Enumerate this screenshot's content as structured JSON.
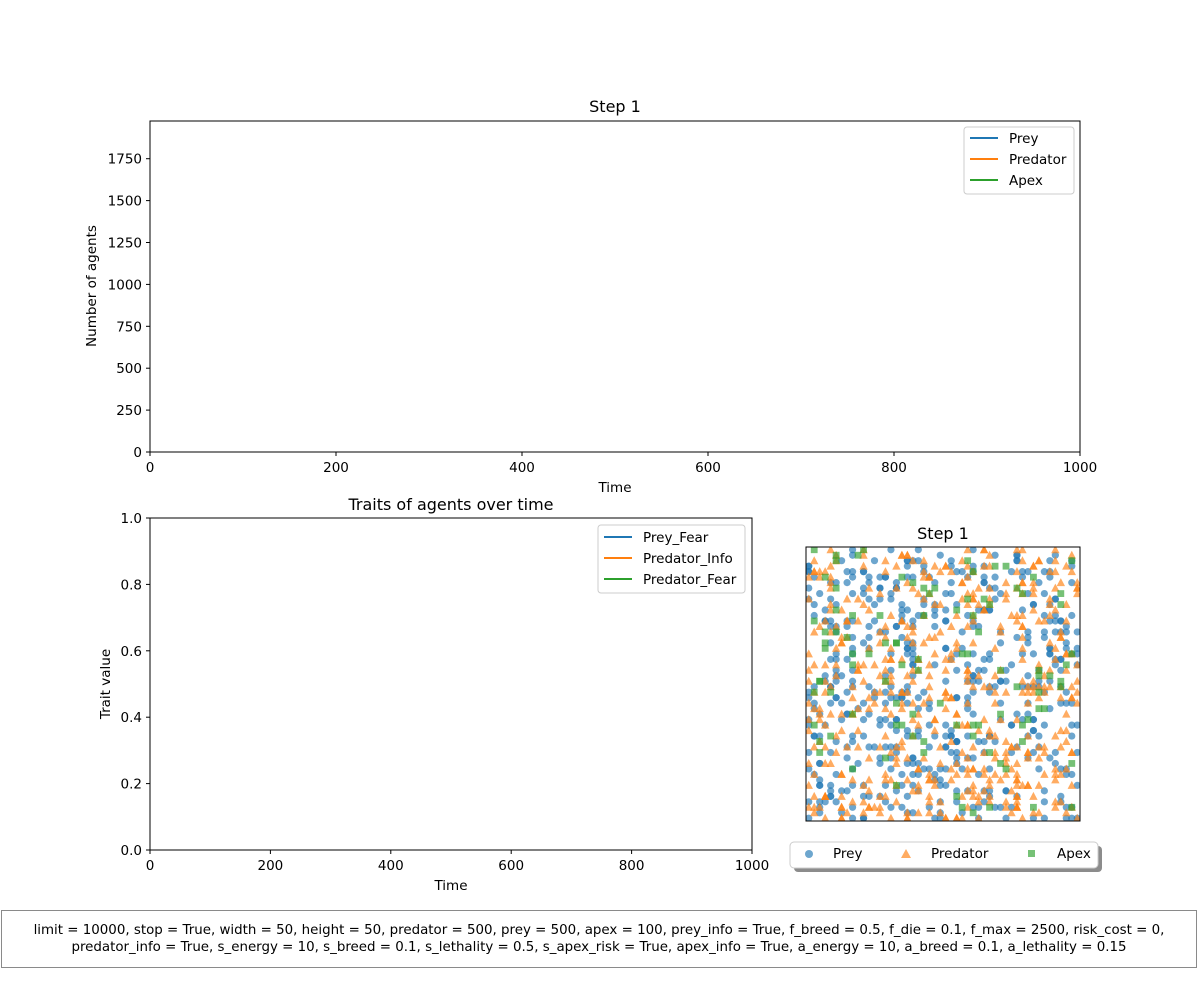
{
  "chart_data": [
    {
      "type": "line",
      "title": "Step 1",
      "xlabel": "Time",
      "ylabel": "Number of agents",
      "xlim": [
        0,
        1000
      ],
      "ylim": [
        0,
        1975
      ],
      "xticks": [
        0,
        200,
        400,
        600,
        800,
        1000
      ],
      "yticks": [
        0,
        250,
        500,
        750,
        1000,
        1250,
        1500,
        1750
      ],
      "grid": false,
      "legend_position": "upper right",
      "series": [
        {
          "name": "Prey",
          "color": "#1f77b4",
          "x": [],
          "y": []
        },
        {
          "name": "Predator",
          "color": "#ff7f0e",
          "x": [],
          "y": []
        },
        {
          "name": "Apex",
          "color": "#2ca02c",
          "x": [],
          "y": []
        }
      ]
    },
    {
      "type": "line",
      "title": "Traits of agents over time",
      "xlabel": "Time",
      "ylabel": "Trait value",
      "xlim": [
        0,
        1000
      ],
      "ylim": [
        0,
        1
      ],
      "xticks": [
        0,
        200,
        400,
        600,
        800,
        1000
      ],
      "yticks": [
        0.0,
        0.2,
        0.4,
        0.6,
        0.8,
        1.0
      ],
      "grid": false,
      "legend_position": "upper right",
      "series": [
        {
          "name": "Prey_Fear",
          "color": "#1f77b4",
          "x": [],
          "y": []
        },
        {
          "name": "Predator_Info",
          "color": "#ff7f0e",
          "x": [],
          "y": []
        },
        {
          "name": "Predator_Fear",
          "color": "#2ca02c",
          "x": [],
          "y": []
        }
      ]
    },
    {
      "type": "scatter",
      "title": "Step 1",
      "grid_size": [
        50,
        50
      ],
      "legend_position": "below",
      "series": [
        {
          "name": "Prey",
          "marker": "circle",
          "color": "#1f77b4",
          "alpha": 0.65,
          "count": 500
        },
        {
          "name": "Predator",
          "marker": "triangle",
          "color": "#ff7f0e",
          "alpha": 0.65,
          "count": 500
        },
        {
          "name": "Apex",
          "marker": "square",
          "color": "#2ca02c",
          "alpha": 0.65,
          "count": 100
        }
      ]
    }
  ],
  "parameters": {
    "line1": "limit = 10000, stop = True, width = 50, height = 50, predator = 500, prey = 500, apex = 100, prey_info = True, f_breed = 0.5, f_die = 0.1, f_max = 2500, risk_cost = 0,",
    "line2": "predator_info = True, s_energy = 10, s_breed = 0.1, s_lethality = 0.5, s_apex_risk = True, apex_info = True, a_energy = 10, a_breed = 0.1, a_lethality = 0.15"
  }
}
